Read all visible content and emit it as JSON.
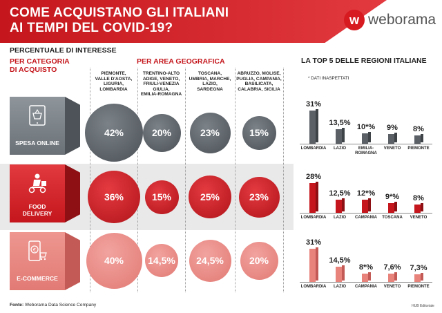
{
  "header": {
    "title_line1": "COME ACQUISTANO GLI ITALIANI",
    "title_line2": "AI TEMPI DEL COVID-19?",
    "logo_mark": "w",
    "logo_text": "weborama"
  },
  "labels": {
    "percentuale": "PERCENTUALE DI INTERESSE",
    "per_categoria_1": "PER CATEGORIA",
    "per_categoria_2": "DI ACQUISTO",
    "per_area": "PER AREA GEOGRAFICA",
    "top5": "LA TOP 5 DELLE REGIONI ITALIANE",
    "note": "* DATI INASPETTATI"
  },
  "areas": [
    {
      "lines": [
        "PIEMONTE,",
        "VALLE D'AOSTA,",
        "LIGURIA,",
        "LOMBARDIA"
      ]
    },
    {
      "lines": [
        "TRENTINO-ALTO",
        "ADIGE, VENETO,",
        "FRIULI-VENEZIA",
        "GIULIA,",
        "EMILIA-ROMAGNA"
      ]
    },
    {
      "lines": [
        "TOSCANA,",
        "UMBRIA, MARCHE,",
        "LAZIO,",
        "SARDEGNA"
      ]
    },
    {
      "lines": [
        "ABRUZZO, MOLISE,",
        "PUGLIA, CAMPANIA,",
        "BASILICATA,",
        "CALABRIA, SICILIA"
      ]
    }
  ],
  "categories": [
    {
      "name_lines": [
        "SPESA ONLINE"
      ],
      "icon": "shopping-basket-icon",
      "values": [
        "42%",
        "20%",
        "23%",
        "15%"
      ],
      "fractions": [
        0.42,
        0.2,
        0.23,
        0.15
      ]
    },
    {
      "name_lines": [
        "FOOD",
        "DELIVERY"
      ],
      "icon": "delivery-scooter-icon",
      "values": [
        "36%",
        "15%",
        "25%",
        "23%"
      ],
      "fractions": [
        0.36,
        0.15,
        0.25,
        0.23
      ]
    },
    {
      "name_lines": [
        "E-COMMERCE"
      ],
      "icon": "shopping-cart-phone-icon",
      "values": [
        "40%",
        "14,5%",
        "24,5%",
        "20%"
      ],
      "fractions": [
        0.4,
        0.145,
        0.245,
        0.2
      ]
    }
  ],
  "chart_data": [
    {
      "type": "bar",
      "categories": [
        "LOMBARDIA",
        "LAZIO",
        "EMILIA-ROMAGNA",
        "VENETO",
        "PIEMONTE"
      ],
      "values": [
        31,
        13.5,
        10,
        9,
        8
      ],
      "labels": [
        "31%",
        "13,5%",
        "10*%",
        "9%",
        "8%"
      ]
    },
    {
      "type": "bar",
      "categories": [
        "LOMBARDIA",
        "LAZIO",
        "CAMPANIA",
        "TOSCANA",
        "VENETO"
      ],
      "values": [
        28,
        12.5,
        12,
        9,
        8
      ],
      "labels": [
        "28%",
        "12,5%",
        "12*%",
        "9*%",
        "8%"
      ]
    },
    {
      "type": "bar",
      "categories": [
        "LOMBARDIA",
        "LAZIO",
        "CAMPANIA",
        "VENETO",
        "PIEMONTE"
      ],
      "values": [
        31,
        14.5,
        8,
        7.6,
        7.3
      ],
      "labels": [
        "31%",
        "14,5%",
        "8*%",
        "7,6%",
        "7,3%"
      ]
    }
  ],
  "colors": {
    "red": "#c4161c",
    "gray": "#5a6066",
    "pink": "#e8837c"
  },
  "footer": {
    "fonte_label": "Fonte:",
    "fonte_text": "Weborama Data Science Company",
    "hub": "HUB Editoriale"
  }
}
